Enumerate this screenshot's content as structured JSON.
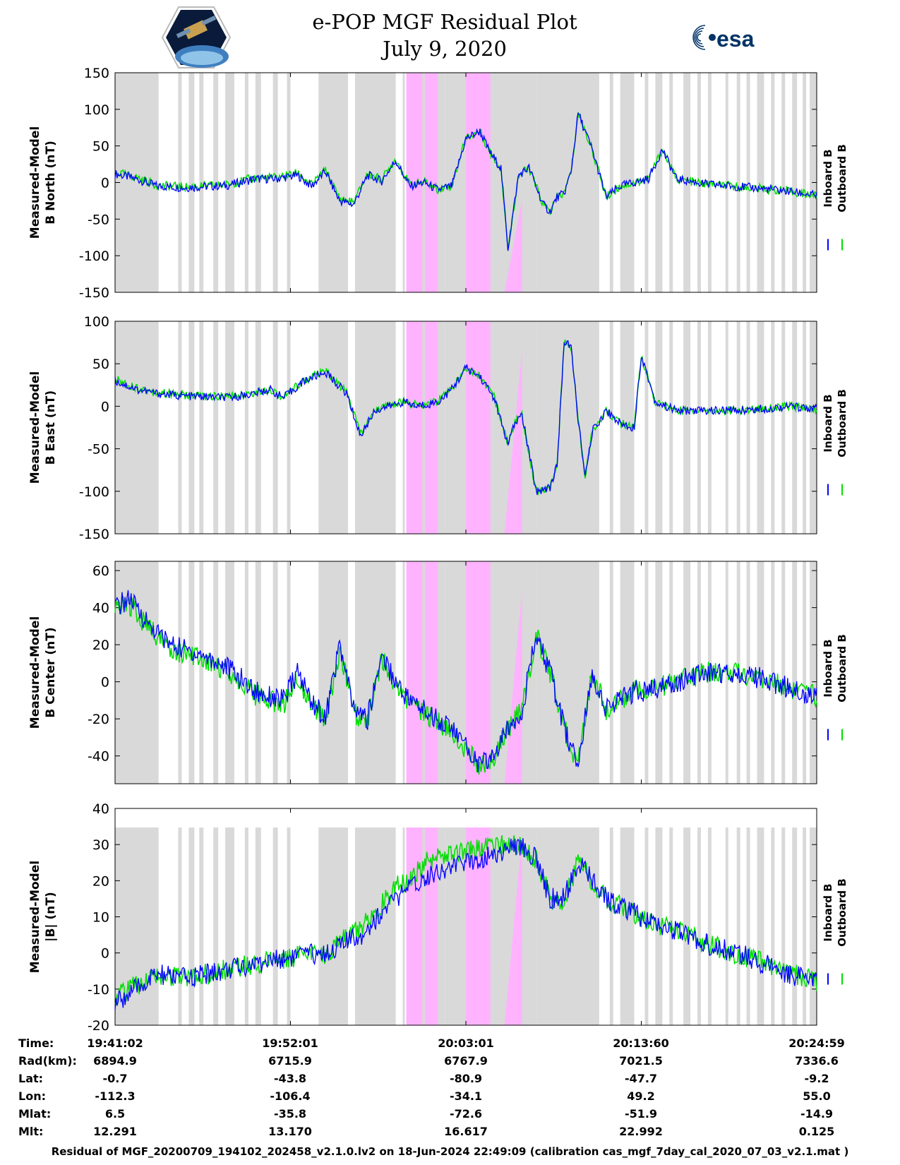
{
  "header": {
    "title_line1": "e-POP MGF Residual Plot",
    "title_line2": "July 9, 2020",
    "left_logo": "cassiope-mission-logo",
    "right_logo_text": "esa"
  },
  "colors": {
    "inboard": "#0000ff",
    "outboard": "#00dd00",
    "gap_shade": "#d9d9d9",
    "event_shade": "#ffb3ff"
  },
  "chart_data": [
    {
      "type": "line",
      "ylabel_line1": "Measured-Model",
      "ylabel_line2": "B North (nT)",
      "ylim": [
        -150,
        150
      ],
      "yticks": [
        -150,
        -100,
        -50,
        0,
        50,
        100,
        150
      ],
      "legend": [
        "Inboard B",
        "Outboard B"
      ],
      "series": [
        {
          "name": "Inboard B",
          "x": [
            0,
            0.03,
            0.06,
            0.1,
            0.16,
            0.2,
            0.23,
            0.26,
            0.28,
            0.3,
            0.32,
            0.34,
            0.36,
            0.38,
            0.4,
            0.42,
            0.44,
            0.46,
            0.48,
            0.5,
            0.52,
            0.535,
            0.55,
            0.56,
            0.575,
            0.59,
            0.6,
            0.61,
            0.62,
            0.63,
            0.64,
            0.65,
            0.66,
            0.67,
            0.68,
            0.7,
            0.72,
            0.74,
            0.76,
            0.78,
            0.8,
            0.84,
            0.88,
            0.92,
            0.96,
            1.0
          ],
          "values": [
            12,
            5,
            -5,
            -7,
            -4,
            5,
            5,
            10,
            -5,
            15,
            -25,
            -30,
            10,
            2,
            30,
            -5,
            0,
            -10,
            -5,
            60,
            70,
            40,
            20,
            -90,
            10,
            20,
            -5,
            -30,
            -40,
            -20,
            -15,
            15,
            95,
            70,
            45,
            -20,
            -5,
            0,
            5,
            45,
            5,
            -2,
            -5,
            -8,
            -12,
            -18
          ]
        },
        {
          "name": "Outboard B",
          "x": [
            0,
            0.03,
            0.06,
            0.1,
            0.16,
            0.2,
            0.23,
            0.26,
            0.28,
            0.3,
            0.32,
            0.34,
            0.36,
            0.38,
            0.4,
            0.42,
            0.44,
            0.46,
            0.48,
            0.5,
            0.52,
            0.535,
            0.55,
            0.56,
            0.575,
            0.59,
            0.6,
            0.61,
            0.62,
            0.63,
            0.64,
            0.65,
            0.66,
            0.67,
            0.68,
            0.7,
            0.72,
            0.74,
            0.76,
            0.78,
            0.8,
            0.84,
            0.88,
            0.92,
            0.96,
            1.0
          ],
          "values": [
            14,
            7,
            -4,
            -6,
            -3,
            7,
            7,
            13,
            -3,
            17,
            -22,
            -27,
            12,
            4,
            32,
            -3,
            1,
            -9,
            -4,
            61,
            70,
            40,
            20,
            -90,
            10,
            20,
            -5,
            -30,
            -40,
            -20,
            -15,
            15,
            95,
            70,
            45,
            -20,
            -5,
            0,
            5,
            45,
            5,
            -2,
            -5,
            -8,
            -12,
            -18
          ]
        }
      ]
    },
    {
      "type": "line",
      "ylabel_line1": "Measured-Model",
      "ylabel_line2": "B East (nT)",
      "ylim": [
        -150,
        100
      ],
      "yticks": [
        -150,
        -100,
        -50,
        0,
        50,
        100
      ],
      "legend": [
        "Inboard B",
        "Outboard B"
      ],
      "series": [
        {
          "name": "Inboard B",
          "x": [
            0,
            0.03,
            0.06,
            0.1,
            0.16,
            0.2,
            0.22,
            0.24,
            0.27,
            0.3,
            0.33,
            0.35,
            0.37,
            0.39,
            0.41,
            0.43,
            0.46,
            0.48,
            0.5,
            0.52,
            0.54,
            0.56,
            0.57,
            0.58,
            0.6,
            0.62,
            0.63,
            0.64,
            0.65,
            0.66,
            0.67,
            0.68,
            0.7,
            0.72,
            0.74,
            0.75,
            0.77,
            0.8,
            0.84,
            0.88,
            0.92,
            0.96,
            1.0
          ],
          "values": [
            30,
            20,
            15,
            12,
            10,
            15,
            20,
            10,
            30,
            40,
            15,
            -35,
            -5,
            0,
            5,
            0,
            5,
            20,
            45,
            35,
            10,
            -45,
            -20,
            -10,
            -100,
            -95,
            -70,
            75,
            70,
            -15,
            -85,
            -30,
            -5,
            -20,
            -25,
            60,
            5,
            -5,
            -5,
            -5,
            -3,
            0,
            -3
          ]
        },
        {
          "name": "Outboard B",
          "x": [
            0,
            0.03,
            0.06,
            0.1,
            0.16,
            0.2,
            0.22,
            0.24,
            0.27,
            0.3,
            0.33,
            0.35,
            0.37,
            0.39,
            0.41,
            0.43,
            0.46,
            0.48,
            0.5,
            0.52,
            0.54,
            0.56,
            0.57,
            0.58,
            0.6,
            0.62,
            0.63,
            0.64,
            0.65,
            0.66,
            0.67,
            0.68,
            0.7,
            0.72,
            0.74,
            0.75,
            0.77,
            0.8,
            0.84,
            0.88,
            0.92,
            0.96,
            1.0
          ],
          "values": [
            32,
            22,
            16,
            13,
            11,
            16,
            21,
            11,
            31,
            41,
            16,
            -33,
            -4,
            1,
            6,
            1,
            6,
            21,
            46,
            36,
            11,
            -43,
            -19,
            -9,
            -100,
            -95,
            -70,
            75,
            70,
            -15,
            -85,
            -30,
            -5,
            -20,
            -25,
            60,
            5,
            -5,
            -5,
            -5,
            -3,
            0,
            -3
          ]
        }
      ]
    },
    {
      "type": "line",
      "ylabel_line1": "Measured-Model",
      "ylabel_line2": "B Center (nT)",
      "ylim": [
        -55,
        65
      ],
      "yticks": [
        -40,
        -20,
        0,
        20,
        40,
        60
      ],
      "legend": [
        "Inboard B",
        "Outboard B"
      ],
      "series": [
        {
          "name": "Inboard B",
          "x": [
            0,
            0.02,
            0.05,
            0.08,
            0.12,
            0.16,
            0.2,
            0.24,
            0.26,
            0.28,
            0.3,
            0.32,
            0.34,
            0.36,
            0.38,
            0.4,
            0.42,
            0.44,
            0.46,
            0.48,
            0.5,
            0.52,
            0.54,
            0.56,
            0.58,
            0.6,
            0.62,
            0.64,
            0.66,
            0.68,
            0.7,
            0.72,
            0.74,
            0.76,
            0.8,
            0.84,
            0.88,
            0.92,
            0.96,
            1.0
          ],
          "values": [
            40,
            45,
            30,
            20,
            15,
            8,
            -5,
            -10,
            5,
            -10,
            -20,
            20,
            -15,
            -20,
            15,
            0,
            -10,
            -15,
            -20,
            -25,
            -35,
            -45,
            -40,
            -25,
            -15,
            25,
            5,
            -25,
            -45,
            5,
            -15,
            -10,
            -5,
            -5,
            0,
            5,
            5,
            2,
            -3,
            -8
          ]
        },
        {
          "name": "Outboard B",
          "x": [
            0,
            0.02,
            0.05,
            0.08,
            0.12,
            0.16,
            0.2,
            0.24,
            0.26,
            0.28,
            0.3,
            0.32,
            0.34,
            0.36,
            0.38,
            0.4,
            0.42,
            0.44,
            0.46,
            0.48,
            0.5,
            0.52,
            0.54,
            0.56,
            0.58,
            0.6,
            0.62,
            0.64,
            0.66,
            0.68,
            0.7,
            0.72,
            0.74,
            0.76,
            0.8,
            0.84,
            0.88,
            0.92,
            0.96,
            1.0
          ],
          "values": [
            38,
            42,
            28,
            18,
            13,
            6,
            -7,
            -12,
            3,
            -12,
            -22,
            18,
            -17,
            -22,
            13,
            -2,
            -12,
            -17,
            -22,
            -27,
            -37,
            -46,
            -40,
            -25,
            -15,
            25,
            5,
            -25,
            -45,
            5,
            -15,
            -10,
            -5,
            -5,
            0,
            5,
            5,
            2,
            -3,
            -8
          ]
        }
      ]
    },
    {
      "type": "line",
      "ylabel_line1": "Measured-Model",
      "ylabel_line2": "|B| (nT)",
      "ylim": [
        -20,
        40
      ],
      "yticks": [
        -20,
        -10,
        0,
        10,
        20,
        30,
        40
      ],
      "legend": [
        "Inboard B",
        "Outboard B"
      ],
      "series": [
        {
          "name": "Inboard B",
          "x": [
            0,
            0.03,
            0.06,
            0.1,
            0.15,
            0.2,
            0.25,
            0.3,
            0.35,
            0.4,
            0.45,
            0.5,
            0.55,
            0.58,
            0.6,
            0.62,
            0.64,
            0.66,
            0.7,
            0.75,
            0.8,
            0.85,
            0.9,
            0.95,
            1.0
          ],
          "values": [
            -14,
            -10,
            -6,
            -7,
            -5,
            -3,
            -1,
            0,
            5,
            15,
            22,
            25,
            28,
            30,
            26,
            15,
            15,
            25,
            15,
            10,
            6,
            2,
            -1,
            -5,
            -8
          ]
        },
        {
          "name": "Outboard B",
          "x": [
            0,
            0.03,
            0.06,
            0.1,
            0.15,
            0.2,
            0.25,
            0.3,
            0.35,
            0.4,
            0.45,
            0.5,
            0.55,
            0.58,
            0.6,
            0.62,
            0.64,
            0.66,
            0.7,
            0.75,
            0.8,
            0.85,
            0.9,
            0.95,
            1.0
          ],
          "values": [
            -12,
            -9,
            -6,
            -7,
            -5,
            -3,
            -1,
            0,
            7,
            18,
            26,
            28,
            30,
            30,
            26,
            15,
            15,
            25,
            15,
            10,
            6,
            2,
            -1,
            -5,
            -8
          ]
        }
      ]
    }
  ],
  "info_rows": [
    {
      "label": "Time:",
      "values": [
        "19:41:02",
        "19:52:01",
        "20:03:01",
        "20:13:60",
        "20:24:59"
      ]
    },
    {
      "label": "Rad(km):",
      "values": [
        "6894.9",
        "6715.9",
        "6767.9",
        "7021.5",
        "7336.6"
      ]
    },
    {
      "label": "Lat:",
      "values": [
        "-0.7",
        "-43.8",
        "-80.9",
        "-47.7",
        "-9.2"
      ]
    },
    {
      "label": "Lon:",
      "values": [
        "-112.3",
        "-106.4",
        "-34.1",
        "49.2",
        "55.0"
      ]
    },
    {
      "label": "Mlat:",
      "values": [
        "6.5",
        "-35.8",
        "-72.6",
        "-51.9",
        "-14.9"
      ]
    },
    {
      "label": "Mlt:",
      "values": [
        "12.291",
        "13.170",
        "16.617",
        "22.992",
        "0.125"
      ]
    }
  ],
  "footer": "Residual of MGF_20200709_194102_202458_v2.1.0.lv2 on 18-Jun-2024 22:49:09 (calibration cas_mgf_7day_cal_2020_07_03_v2.1.mat )"
}
